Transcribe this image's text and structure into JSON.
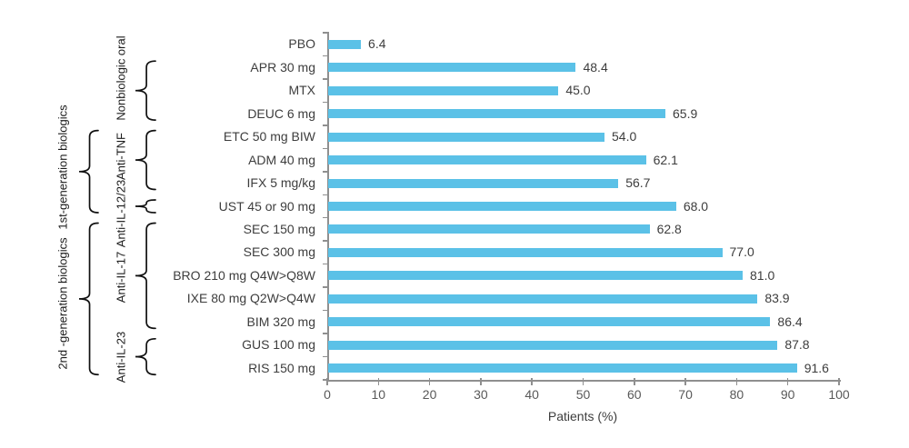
{
  "chart_data": {
    "type": "bar",
    "orientation": "horizontal",
    "title": "",
    "xlabel": "Patients (%)",
    "xlim": [
      0,
      100
    ],
    "xticks": [
      "0",
      "10",
      "20",
      "30",
      "40",
      "50",
      "60",
      "70",
      "80",
      "90",
      "100"
    ],
    "grid": false,
    "legend": null,
    "bar_color": "#5BC1E7",
    "categories": [
      "PBO",
      "APR 30 mg",
      "MTX",
      "DEUC 6 mg",
      "ETC 50 mg BIW",
      "ADM 40 mg",
      "IFX 5 mg/kg",
      "UST 45 or 90 mg",
      "SEC 150 mg",
      "SEC 300 mg",
      "BRO 210 mg Q4W>Q8W",
      "IXE 80 mg Q2W>Q4W",
      "BIM 320 mg",
      "GUS 100 mg",
      "RIS 150 mg"
    ],
    "values": [
      6.4,
      48.4,
      45.0,
      65.9,
      54.0,
      62.1,
      56.7,
      68.0,
      62.8,
      77.0,
      81.0,
      83.9,
      86.4,
      87.8,
      91.6
    ],
    "value_labels": [
      "6.4",
      "48.4",
      "45.0",
      "65.9",
      "54.0",
      "62.1",
      "56.7",
      "68.0",
      "62.8",
      "77.0",
      "81.0",
      "83.9",
      "86.4",
      "87.8",
      "91.6"
    ],
    "groups_inner": [
      {
        "label": "Nonbiologic oral",
        "from": 1,
        "to": 3
      },
      {
        "label": "Anti-TNF",
        "from": 4,
        "to": 6
      },
      {
        "label": "Anti-IL-12/23",
        "from": 7,
        "to": 7
      },
      {
        "label": "Anti-IL-17",
        "from": 8,
        "to": 12
      },
      {
        "label": "Anti-IL-23",
        "from": 13,
        "to": 14
      }
    ],
    "groups_outer": [
      {
        "label": "1st-generation biologics",
        "from": 4,
        "to": 7
      },
      {
        "label": "2nd -generation biologics",
        "from": 8,
        "to": 14
      }
    ]
  }
}
